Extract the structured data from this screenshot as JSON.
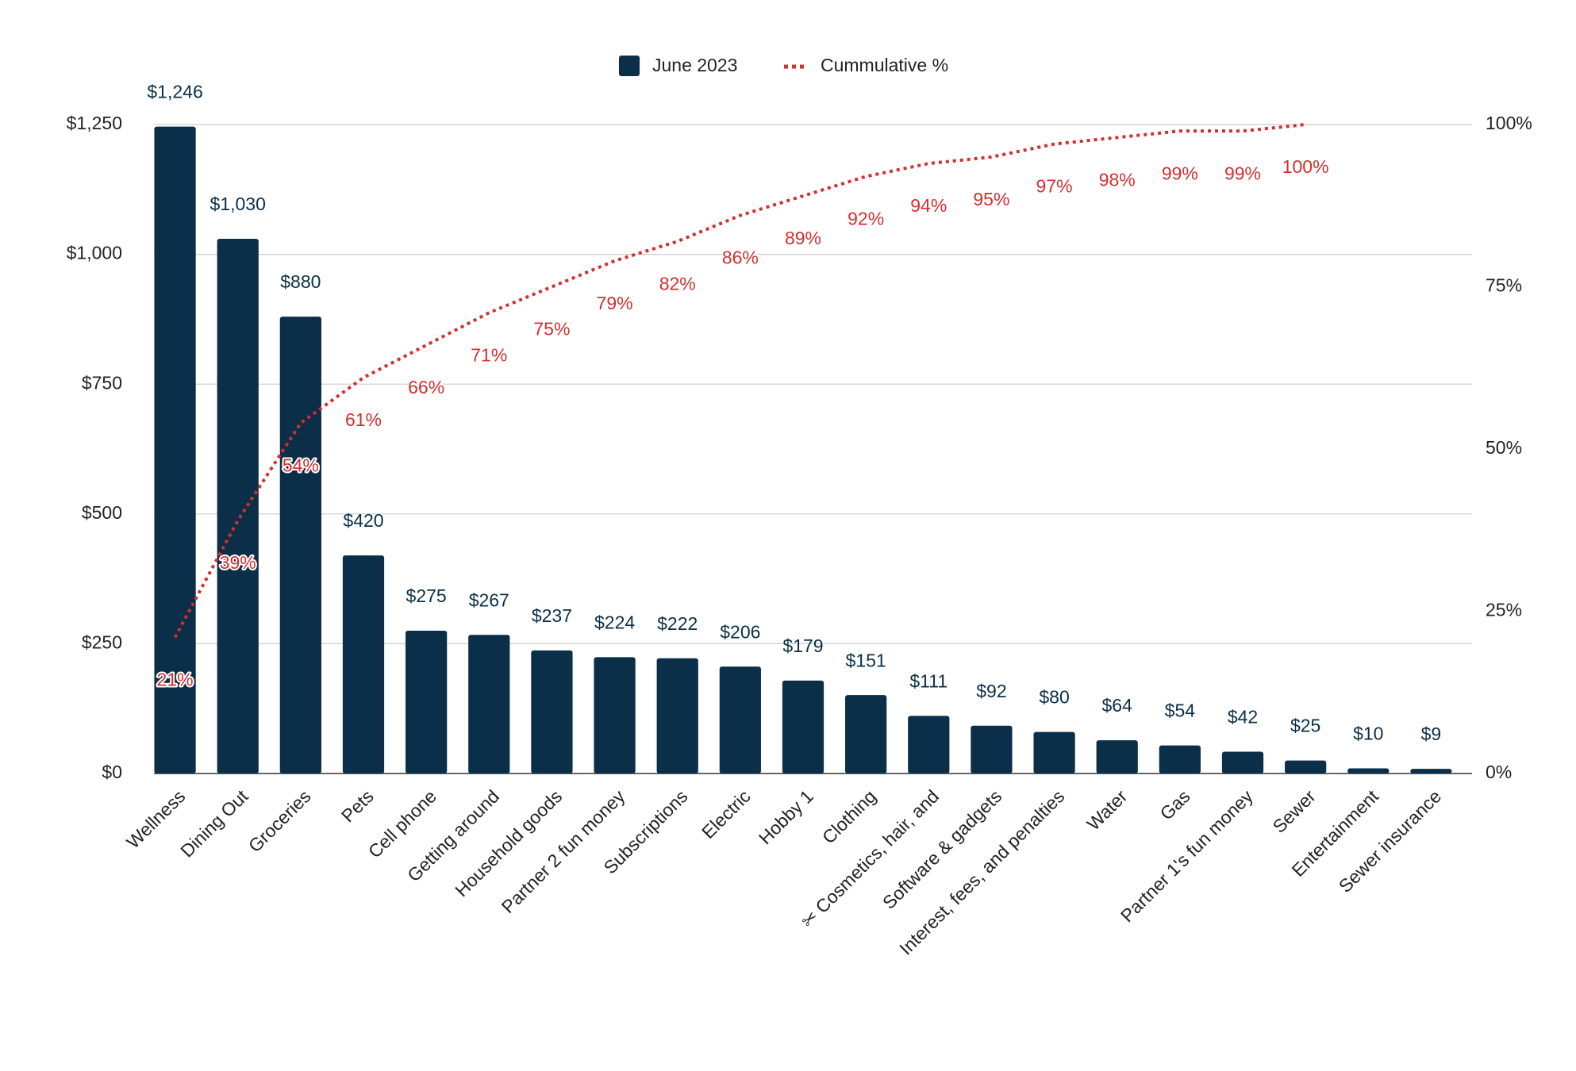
{
  "chart_data": {
    "type": "bar",
    "categories": [
      "Wellness",
      "Dining Out",
      "Groceries",
      "Pets",
      "Cell phone",
      "Getting around",
      "Household goods",
      "Partner 2 fun money",
      "Subscriptions",
      "Electric",
      "Hobby 1",
      "Clothing",
      "✂ Cosmetics, hair, and",
      "Software & gadgets",
      "Interest, fees, and penalties",
      "Water",
      "Gas",
      "Partner 1's fun money",
      "Sewer",
      "Entertainment",
      "Sewer insurance"
    ],
    "series": [
      {
        "name": "June 2023",
        "color": "#0b2f48",
        "values": [
          1246,
          1030,
          880,
          420,
          275,
          267,
          237,
          224,
          222,
          206,
          179,
          151,
          111,
          92,
          80,
          64,
          54,
          42,
          25,
          10,
          9
        ],
        "value_labels": [
          "$1,246",
          "$1,030",
          "$880",
          "$420",
          "$275",
          "$267",
          "$237",
          "$224",
          "$222",
          "$206",
          "$179",
          "$151",
          "$111",
          "$92",
          "$80",
          "$64",
          "$54",
          "$42",
          "$25",
          "$10",
          "$9"
        ]
      },
      {
        "name": "Cummulative %",
        "color": "#d32f2f",
        "axis": "y2",
        "type": "line",
        "values": [
          21,
          39,
          54,
          61,
          66,
          71,
          75,
          79,
          82,
          86,
          89,
          92,
          94,
          95,
          97,
          98,
          99,
          99,
          100,
          null,
          null
        ],
        "value_labels": [
          "21%",
          "39%",
          "54%",
          "61%",
          "66%",
          "71%",
          "75%",
          "79%",
          "82%",
          "86%",
          "89%",
          "92%",
          "94%",
          "95%",
          "97%",
          "98%",
          "99%",
          "99%",
          "100%",
          null,
          null
        ]
      }
    ],
    "ylim": [
      0,
      1250
    ],
    "yticks": [
      {
        "value": 0,
        "label": "$0"
      },
      {
        "value": 250,
        "label": "$250"
      },
      {
        "value": 500,
        "label": "$500"
      },
      {
        "value": 750,
        "label": "$750"
      },
      {
        "value": 1000,
        "label": "$1,000"
      },
      {
        "value": 1250,
        "label": "$1,250"
      }
    ],
    "y2lim": [
      0,
      100
    ],
    "y2ticks": [
      {
        "value": 0,
        "label": "0%"
      },
      {
        "value": 25,
        "label": "25%"
      },
      {
        "value": 50,
        "label": "50%"
      },
      {
        "value": 75,
        "label": "75%"
      },
      {
        "value": 100,
        "label": "100%"
      }
    ],
    "grid": true,
    "legend": "top"
  }
}
